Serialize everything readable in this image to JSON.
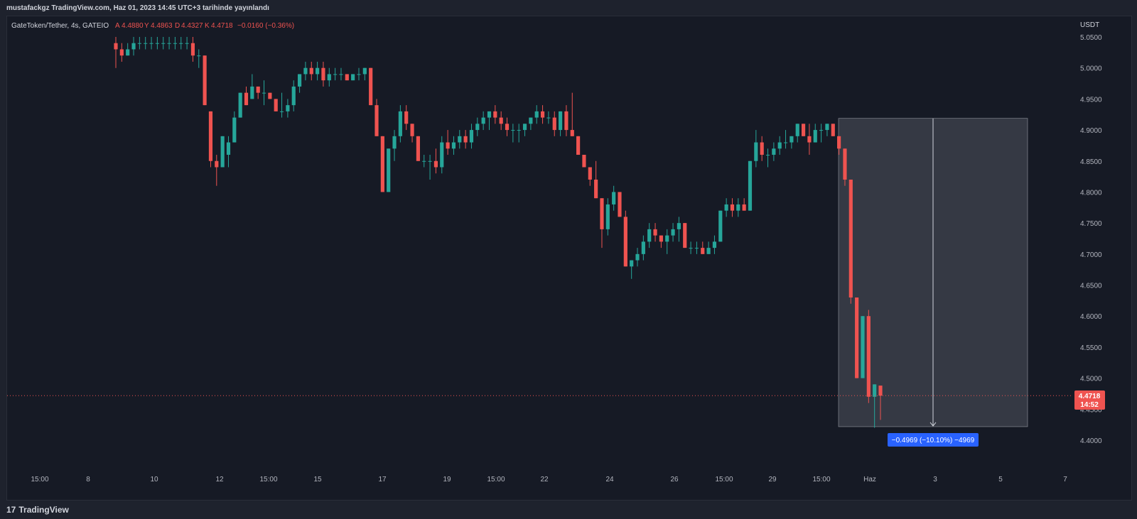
{
  "header": {
    "published": "mustafackgz TradingView.com, Haz 01, 2023 14:45 UTC+3 tarihinde yayınlandı"
  },
  "legend": {
    "symbol": "GateToken/Tether, 4s, GATEIO",
    "open_label": "A",
    "open": "4.4880",
    "high_label": "Y",
    "high": "4.4863",
    "low_label": "D",
    "low": "4.4327",
    "close_label": "K",
    "close": "4.4718",
    "change": "−0.0160 (−0.36%)"
  },
  "price_scale": {
    "currency": "USDT"
  },
  "last_price": {
    "value": "4.4718",
    "countdown": "14:52"
  },
  "measure": {
    "label": "−0.4969 (−10.10%) −4969"
  },
  "footer": {
    "brand": "TradingView",
    "brand_mark": "17"
  },
  "colors": {
    "up": "#26a69a",
    "down": "#ef5350",
    "bg": "#161a25",
    "measure": "#2962ff"
  },
  "chart_data": {
    "type": "candlestick",
    "y_ticks": [
      "5.0500",
      "5.0000",
      "4.9500",
      "4.9000",
      "4.8500",
      "4.8000",
      "4.7500",
      "4.7000",
      "4.6500",
      "4.6000",
      "4.5500",
      "4.5000",
      "4.4500",
      "4.4000"
    ],
    "x_ticks": [
      "15:00",
      "8",
      "10",
      "12",
      "15:00",
      "15",
      "17",
      "19",
      "15:00",
      "22",
      "24",
      "26",
      "15:00",
      "29",
      "15:00",
      "Haz",
      "3",
      "5",
      "7"
    ],
    "ylim": [
      4.38,
      5.07
    ],
    "current_price": 4.4718,
    "candles": [
      [
        5.04,
        5.05,
        5.0,
        5.03
      ],
      [
        5.03,
        5.04,
        5.01,
        5.02
      ],
      [
        5.02,
        5.04,
        5.02,
        5.03
      ],
      [
        5.03,
        5.05,
        5.02,
        5.04
      ],
      [
        5.04,
        5.05,
        5.03,
        5.04
      ],
      [
        5.04,
        5.05,
        5.03,
        5.04
      ],
      [
        5.04,
        5.05,
        5.03,
        5.04
      ],
      [
        5.04,
        5.05,
        5.03,
        5.04
      ],
      [
        5.04,
        5.05,
        5.03,
        5.04
      ],
      [
        5.04,
        5.05,
        5.03,
        5.04
      ],
      [
        5.04,
        5.05,
        5.03,
        5.04
      ],
      [
        5.04,
        5.05,
        5.03,
        5.04
      ],
      [
        5.04,
        5.05,
        5.03,
        5.04
      ],
      [
        5.04,
        5.05,
        5.01,
        5.02
      ],
      [
        5.02,
        5.03,
        5.0,
        5.02
      ],
      [
        5.02,
        5.02,
        4.94,
        4.94
      ],
      [
        4.93,
        4.93,
        4.84,
        4.85
      ],
      [
        4.85,
        4.86,
        4.81,
        4.84
      ],
      [
        4.84,
        4.89,
        4.84,
        4.89
      ],
      [
        4.86,
        4.89,
        4.84,
        4.88
      ],
      [
        4.88,
        4.93,
        4.88,
        4.92
      ],
      [
        4.92,
        4.96,
        4.92,
        4.96
      ],
      [
        4.96,
        4.97,
        4.94,
        4.94
      ],
      [
        4.95,
        4.99,
        4.95,
        4.97
      ],
      [
        4.97,
        4.97,
        4.95,
        4.96
      ],
      [
        4.96,
        4.98,
        4.94,
        4.96
      ],
      [
        4.96,
        4.96,
        4.95,
        4.95
      ],
      [
        4.95,
        4.95,
        4.93,
        4.93
      ],
      [
        4.93,
        4.96,
        4.92,
        4.93
      ],
      [
        4.93,
        4.95,
        4.92,
        4.94
      ],
      [
        4.94,
        4.98,
        4.93,
        4.97
      ],
      [
        4.97,
        4.99,
        4.96,
        4.99
      ],
      [
        4.99,
        5.01,
        4.98,
        5.0
      ],
      [
        5.0,
        5.01,
        4.98,
        4.99
      ],
      [
        4.99,
        5.01,
        4.98,
        5.0
      ],
      [
        5.0,
        5.01,
        4.97,
        4.98
      ],
      [
        4.98,
        5.0,
        4.97,
        4.99
      ],
      [
        4.99,
        5.0,
        4.98,
        4.99
      ],
      [
        4.99,
        5.0,
        4.98,
        4.99
      ],
      [
        4.99,
        4.99,
        4.98,
        4.98
      ],
      [
        4.98,
        4.99,
        4.98,
        4.99
      ],
      [
        4.99,
        5.0,
        4.98,
        4.99
      ],
      [
        4.99,
        5.0,
        4.98,
        5.0
      ],
      [
        5.0,
        5.0,
        4.94,
        4.94
      ],
      [
        4.94,
        4.95,
        4.89,
        4.89
      ],
      [
        4.89,
        4.89,
        4.8,
        4.8
      ],
      [
        4.8,
        4.87,
        4.8,
        4.87
      ],
      [
        4.87,
        4.9,
        4.85,
        4.89
      ],
      [
        4.89,
        4.94,
        4.88,
        4.93
      ],
      [
        4.93,
        4.94,
        4.9,
        4.91
      ],
      [
        4.91,
        4.91,
        4.88,
        4.89
      ],
      [
        4.89,
        4.89,
        4.85,
        4.85
      ],
      [
        4.85,
        4.86,
        4.84,
        4.85
      ],
      [
        4.85,
        4.86,
        4.82,
        4.85
      ],
      [
        4.85,
        4.87,
        4.83,
        4.84
      ],
      [
        4.84,
        4.89,
        4.83,
        4.88
      ],
      [
        4.88,
        4.9,
        4.86,
        4.87
      ],
      [
        4.87,
        4.89,
        4.86,
        4.88
      ],
      [
        4.88,
        4.9,
        4.87,
        4.89
      ],
      [
        4.89,
        4.9,
        4.87,
        4.88
      ],
      [
        4.88,
        4.91,
        4.87,
        4.9
      ],
      [
        4.9,
        4.92,
        4.89,
        4.91
      ],
      [
        4.91,
        4.93,
        4.9,
        4.92
      ],
      [
        4.92,
        4.93,
        4.9,
        4.93
      ],
      [
        4.93,
        4.94,
        4.91,
        4.92
      ],
      [
        4.92,
        4.93,
        4.9,
        4.91
      ],
      [
        4.91,
        4.92,
        4.89,
        4.9
      ],
      [
        4.9,
        4.91,
        4.88,
        4.9
      ],
      [
        4.9,
        4.91,
        4.88,
        4.9
      ],
      [
        4.9,
        4.91,
        4.89,
        4.91
      ],
      [
        4.91,
        4.92,
        4.9,
        4.92
      ],
      [
        4.92,
        4.94,
        4.91,
        4.93
      ],
      [
        4.93,
        4.94,
        4.91,
        4.92
      ],
      [
        4.92,
        4.93,
        4.91,
        4.92
      ],
      [
        4.92,
        4.93,
        4.89,
        4.9
      ],
      [
        4.9,
        4.93,
        4.89,
        4.93
      ],
      [
        4.93,
        4.94,
        4.89,
        4.9
      ],
      [
        4.9,
        4.96,
        4.89,
        4.89
      ],
      [
        4.89,
        4.89,
        4.86,
        4.86
      ],
      [
        4.86,
        4.86,
        4.84,
        4.84
      ],
      [
        4.84,
        4.84,
        4.81,
        4.82
      ],
      [
        4.82,
        4.85,
        4.79,
        4.79
      ],
      [
        4.79,
        4.79,
        4.71,
        4.74
      ],
      [
        4.74,
        4.79,
        4.73,
        4.78
      ],
      [
        4.78,
        4.81,
        4.77,
        4.8
      ],
      [
        4.8,
        4.8,
        4.76,
        4.76
      ],
      [
        4.76,
        4.77,
        4.68,
        4.68
      ],
      [
        4.68,
        4.69,
        4.66,
        4.69
      ],
      [
        4.69,
        4.71,
        4.68,
        4.7
      ],
      [
        4.7,
        4.73,
        4.69,
        4.72
      ],
      [
        4.72,
        4.75,
        4.71,
        4.74
      ],
      [
        4.74,
        4.75,
        4.72,
        4.73
      ],
      [
        4.73,
        4.73,
        4.71,
        4.72
      ],
      [
        4.72,
        4.74,
        4.7,
        4.73
      ],
      [
        4.73,
        4.75,
        4.72,
        4.74
      ],
      [
        4.74,
        4.76,
        4.72,
        4.75
      ],
      [
        4.75,
        4.75,
        4.71,
        4.71
      ],
      [
        4.71,
        4.72,
        4.7,
        4.71
      ],
      [
        4.71,
        4.72,
        4.7,
        4.71
      ],
      [
        4.71,
        4.72,
        4.7,
        4.7
      ],
      [
        4.7,
        4.72,
        4.7,
        4.71
      ],
      [
        4.71,
        4.73,
        4.7,
        4.72
      ],
      [
        4.72,
        4.77,
        4.72,
        4.77
      ],
      [
        4.77,
        4.79,
        4.76,
        4.78
      ],
      [
        4.78,
        4.79,
        4.76,
        4.77
      ],
      [
        4.77,
        4.79,
        4.76,
        4.78
      ],
      [
        4.78,
        4.79,
        4.77,
        4.77
      ],
      [
        4.77,
        4.85,
        4.77,
        4.85
      ],
      [
        4.85,
        4.9,
        4.84,
        4.88
      ],
      [
        4.88,
        4.89,
        4.85,
        4.86
      ],
      [
        4.86,
        4.87,
        4.84,
        4.86
      ],
      [
        4.86,
        4.88,
        4.85,
        4.87
      ],
      [
        4.87,
        4.89,
        4.86,
        4.88
      ],
      [
        4.88,
        4.9,
        4.87,
        4.88
      ],
      [
        4.88,
        4.89,
        4.87,
        4.89
      ],
      [
        4.89,
        4.91,
        4.88,
        4.91
      ],
      [
        4.91,
        4.91,
        4.89,
        4.89
      ],
      [
        4.89,
        4.91,
        4.86,
        4.88
      ],
      [
        4.88,
        4.91,
        4.88,
        4.9
      ],
      [
        4.9,
        4.91,
        4.88,
        4.9
      ],
      [
        4.9,
        4.91,
        4.89,
        4.91
      ],
      [
        4.91,
        4.91,
        4.89,
        4.89
      ],
      [
        4.89,
        4.89,
        4.86,
        4.87
      ],
      [
        4.87,
        4.87,
        4.81,
        4.82
      ],
      [
        4.82,
        4.82,
        4.62,
        4.63
      ],
      [
        4.63,
        4.63,
        4.5,
        4.5
      ],
      [
        4.5,
        4.6,
        4.5,
        4.6
      ],
      [
        4.6,
        4.61,
        4.46,
        4.47
      ],
      [
        4.47,
        4.49,
        4.42,
        4.49
      ],
      [
        4.488,
        4.4863,
        4.4327,
        4.4718
      ]
    ]
  }
}
